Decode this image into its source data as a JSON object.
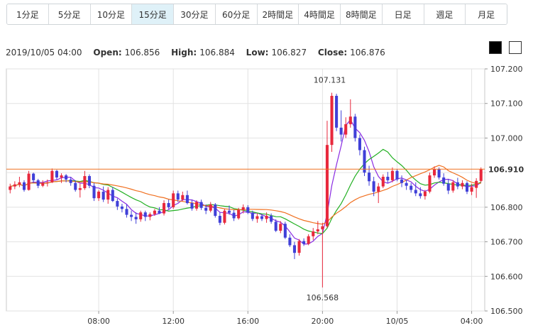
{
  "tabs": [
    {
      "label": "1分足",
      "active": false
    },
    {
      "label": "5分足",
      "active": false
    },
    {
      "label": "10分足",
      "active": false
    },
    {
      "label": "15分足",
      "active": true
    },
    {
      "label": "30分足",
      "active": false
    },
    {
      "label": "60分足",
      "active": false
    },
    {
      "label": "2時間足",
      "active": false
    },
    {
      "label": "4時間足",
      "active": false
    },
    {
      "label": "8時間足",
      "active": false
    },
    {
      "label": "日足",
      "active": false
    },
    {
      "label": "週足",
      "active": false
    },
    {
      "label": "月足",
      "active": false
    }
  ],
  "ohlc": {
    "datetime": "2019/10/05 04:00",
    "open_label": "Open:",
    "open": "106.856",
    "high_label": "High:",
    "high": "106.884",
    "low_label": "Low:",
    "low": "106.827",
    "close_label": "Close:",
    "close": "106.876"
  },
  "theme_buttons": [
    "black",
    "white"
  ],
  "chart_data": {
    "type": "candlestick",
    "ylim": [
      106.5,
      107.2
    ],
    "y_ticks": [
      "107.200",
      "107.100",
      "107.000",
      "106.900",
      "106.800",
      "106.700",
      "106.600",
      "106.500"
    ],
    "x_ticks": [
      "08:00",
      "12:00",
      "16:00",
      "20:00",
      "10/05",
      "04:00"
    ],
    "x_tick_index": [
      19,
      35,
      51,
      67,
      83,
      99
    ],
    "current_price": "106.910",
    "max_label": "107.131",
    "min_label": "106.568",
    "colors": {
      "up": "#e8283c",
      "down": "#4040d8",
      "ma_short": "#8a2be2",
      "ma_mid": "#22b022",
      "ma_long": "#f07020",
      "price_line": "#f07020"
    },
    "candles": [
      [
        106.85,
        106.868,
        106.84,
        106.86
      ],
      [
        106.86,
        106.875,
        106.852,
        106.866
      ],
      [
        106.866,
        106.888,
        106.858,
        106.872
      ],
      [
        106.872,
        106.878,
        106.845,
        106.85
      ],
      [
        106.85,
        106.905,
        106.848,
        106.897
      ],
      [
        106.897,
        106.9,
        106.87,
        106.878
      ],
      [
        106.878,
        106.882,
        106.855,
        106.862
      ],
      [
        106.862,
        106.878,
        106.858,
        106.87
      ],
      [
        106.87,
        106.88,
        106.86,
        106.872
      ],
      [
        106.872,
        106.912,
        106.87,
        106.905
      ],
      [
        106.905,
        106.908,
        106.88,
        106.886
      ],
      [
        106.886,
        106.898,
        106.87,
        106.892
      ],
      [
        106.892,
        106.896,
        106.872,
        106.88
      ],
      [
        106.88,
        106.888,
        106.862,
        106.87
      ],
      [
        106.87,
        106.878,
        106.845,
        106.85
      ],
      [
        106.85,
        106.868,
        106.828,
        106.855
      ],
      [
        106.855,
        106.905,
        106.85,
        106.89
      ],
      [
        106.89,
        106.895,
        106.855,
        106.862
      ],
      [
        106.862,
        106.87,
        106.818,
        106.826
      ],
      [
        106.826,
        106.85,
        106.818,
        106.845
      ],
      [
        106.845,
        106.86,
        106.815,
        106.822
      ],
      [
        106.822,
        106.858,
        106.81,
        106.85
      ],
      [
        106.85,
        106.858,
        106.815,
        106.818
      ],
      [
        106.818,
        106.825,
        106.792,
        106.802
      ],
      [
        106.802,
        106.81,
        106.785,
        106.795
      ],
      [
        106.795,
        106.808,
        106.77,
        106.778
      ],
      [
        106.778,
        106.79,
        106.76,
        106.772
      ],
      [
        106.772,
        106.785,
        106.752,
        106.765
      ],
      [
        106.765,
        106.79,
        106.758,
        106.785
      ],
      [
        106.785,
        106.79,
        106.76,
        106.772
      ],
      [
        106.772,
        106.785,
        106.762,
        106.78
      ],
      [
        106.78,
        106.795,
        106.775,
        106.79
      ],
      [
        106.79,
        106.8,
        106.78,
        106.782
      ],
      [
        106.782,
        106.82,
        106.776,
        106.812
      ],
      [
        106.812,
        106.822,
        106.795,
        106.8
      ],
      [
        106.8,
        106.848,
        106.795,
        106.84
      ],
      [
        106.84,
        106.848,
        106.815,
        106.822
      ],
      [
        106.822,
        106.845,
        106.818,
        106.835
      ],
      [
        106.835,
        106.848,
        106.808,
        106.812
      ],
      [
        106.812,
        106.822,
        106.79,
        106.796
      ],
      [
        106.796,
        106.82,
        106.79,
        106.815
      ],
      [
        106.815,
        106.822,
        106.792,
        106.798
      ],
      [
        106.798,
        106.808,
        106.78,
        106.79
      ],
      [
        106.79,
        106.815,
        106.785,
        106.808
      ],
      [
        106.808,
        106.812,
        106.77,
        106.775
      ],
      [
        106.775,
        106.785,
        106.748,
        106.755
      ],
      [
        106.755,
        106.795,
        106.75,
        106.79
      ],
      [
        106.79,
        106.805,
        106.778,
        106.784
      ],
      [
        106.784,
        106.792,
        106.76,
        106.768
      ],
      [
        106.768,
        106.798,
        106.764,
        106.792
      ],
      [
        106.792,
        106.808,
        106.782,
        106.8
      ],
      [
        106.8,
        106.806,
        106.78,
        106.784
      ],
      [
        106.784,
        106.79,
        106.76,
        106.766
      ],
      [
        106.766,
        106.782,
        106.755,
        106.774
      ],
      [
        106.774,
        106.78,
        106.76,
        106.766
      ],
      [
        106.766,
        106.785,
        106.755,
        106.775
      ],
      [
        106.775,
        106.782,
        106.752,
        106.758
      ],
      [
        106.758,
        106.765,
        106.728,
        106.732
      ],
      [
        106.732,
        106.76,
        106.725,
        106.752
      ],
      [
        106.752,
        106.758,
        106.708,
        106.712
      ],
      [
        106.712,
        106.722,
        106.685,
        106.69
      ],
      [
        106.69,
        106.7,
        106.65,
        106.668
      ],
      [
        106.668,
        106.708,
        106.66,
        106.702
      ],
      [
        106.702,
        106.71,
        106.688,
        106.694
      ],
      [
        106.694,
        106.722,
        106.69,
        106.716
      ],
      [
        106.716,
        106.74,
        106.705,
        106.73
      ],
      [
        106.73,
        106.76,
        106.722,
        106.736
      ],
      [
        106.736,
        106.755,
        106.568,
        106.745
      ],
      [
        106.745,
        107.05,
        106.74,
        106.98
      ],
      [
        106.98,
        107.131,
        106.96,
        107.122
      ],
      [
        107.122,
        107.128,
        107.02,
        107.03
      ],
      [
        107.03,
        107.08,
        106.99,
        107.01
      ],
      [
        107.01,
        107.06,
        107.0,
        107.04
      ],
      [
        107.04,
        107.112,
        107.03,
        107.062
      ],
      [
        107.062,
        107.07,
        106.99,
        107.0
      ],
      [
        107.0,
        107.01,
        106.95,
        106.965
      ],
      [
        106.965,
        106.975,
        106.89,
        106.9
      ],
      [
        106.9,
        106.92,
        106.862,
        106.875
      ],
      [
        106.875,
        106.888,
        106.832,
        106.845
      ],
      [
        106.845,
        106.87,
        106.812,
        106.86
      ],
      [
        106.86,
        106.895,
        106.855,
        106.888
      ],
      [
        106.888,
        106.902,
        106.87,
        106.878
      ],
      [
        106.878,
        106.915,
        106.872,
        106.905
      ],
      [
        106.905,
        106.91,
        106.875,
        106.88
      ],
      [
        106.88,
        106.892,
        106.858,
        106.87
      ],
      [
        106.87,
        106.88,
        106.85,
        106.862
      ],
      [
        106.862,
        106.87,
        106.842,
        106.85
      ],
      [
        106.85,
        106.872,
        106.832,
        106.84
      ],
      [
        106.84,
        106.858,
        106.825,
        106.832
      ],
      [
        106.832,
        106.85,
        106.822,
        106.845
      ],
      [
        106.845,
        106.9,
        106.84,
        106.892
      ],
      [
        106.892,
        106.918,
        106.885,
        106.91
      ],
      [
        106.91,
        106.915,
        106.88,
        106.886
      ],
      [
        106.886,
        106.898,
        106.862,
        106.868
      ],
      [
        106.868,
        106.882,
        106.838,
        106.848
      ],
      [
        106.848,
        106.878,
        106.842,
        106.872
      ],
      [
        106.872,
        106.885,
        106.852,
        106.86
      ],
      [
        106.86,
        106.878,
        106.852,
        106.87
      ],
      [
        106.87,
        106.875,
        106.838,
        106.845
      ],
      [
        106.845,
        106.868,
        106.835,
        106.858
      ],
      [
        106.856,
        106.884,
        106.827,
        106.876
      ],
      [
        106.876,
        106.915,
        106.872,
        106.91
      ]
    ]
  }
}
